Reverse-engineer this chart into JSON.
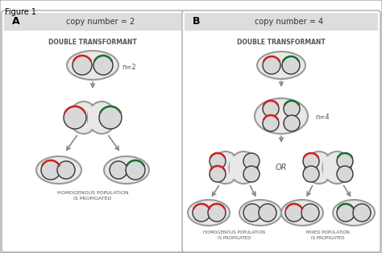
{
  "title": "Figure 1",
  "panel_A_header": "copy number = 2",
  "panel_B_header": "copy number = 4",
  "label_A": "A",
  "label_B": "B",
  "n2_label": "n=2",
  "n4_label": "n=4",
  "or_label": "OR",
  "double_transformant": "DOUBLE TRANSFORMANT",
  "homogenous_label": "HOMOGENOUS POPULATION\nIS PROPIGATED",
  "mixed_label": "MIXED POPULATION\nIS PROPIGATED",
  "cell_fill": "#e8e8e8",
  "cell_edge": "#999999",
  "plasmid_fill": "#d8d8d8",
  "plasmid_edge": "#333333",
  "red_color": "#cc2222",
  "green_color": "#1a6e2e",
  "arrow_color": "#888888",
  "text_color": "#555555",
  "header_bg": "#dddddd",
  "panel_bg": "white",
  "fig_bg": "#f0f0f0"
}
